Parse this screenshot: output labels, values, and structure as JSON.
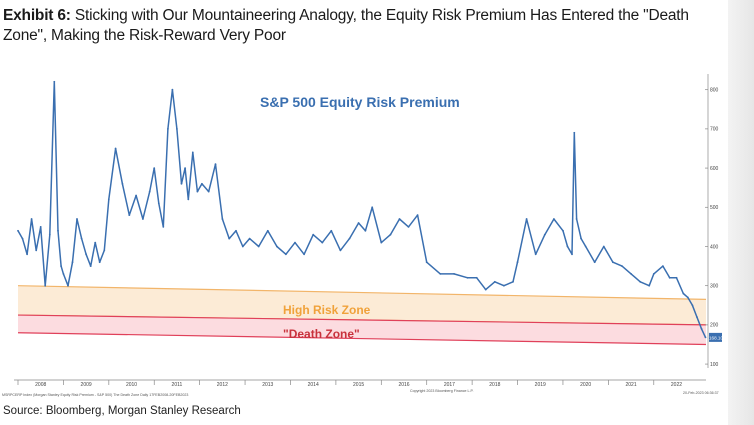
{
  "header": {
    "label": "Exhibit 6:",
    "title": " Sticking with Our Mountaineering Analogy, the Equity Risk Premium Has Entered the \"Death Zone\", Making the Risk-Reward Very Poor"
  },
  "source": "Source: Bloomberg, Morgan Stanley Research",
  "colors": {
    "line": "#3a6fb0",
    "title": "#3a6fb0",
    "high_zone_fill": "#fbe7cf",
    "high_zone_line": "#f2b56a",
    "high_zone_text": "#f0a23a",
    "death_zone_fill": "#fbd6da",
    "death_zone_line": "#e0405a",
    "death_zone_text": "#c8323c",
    "last_badge": "#3a6fb0"
  },
  "chart_data": {
    "type": "line",
    "title": "S&P 500 Equity Risk Premium",
    "xlabel": "",
    "ylabel": "",
    "x_range": [
      2008.0,
      2023.15
    ],
    "ylim": [
      90,
      840
    ],
    "y_ticks": [
      100,
      200,
      300,
      400,
      500,
      600,
      700,
      800
    ],
    "x_ticks": [
      "2008",
      "2009",
      "2010",
      "2011",
      "2012",
      "2013",
      "2014",
      "2015",
      "2016",
      "2017",
      "2018",
      "2019",
      "2020",
      "2021",
      "2022"
    ],
    "last_value_label": "168.10",
    "footnotes": {
      "left": "MSRPCERP Index (Morgan Stanley Equity Risk Premium - S&P 500) The Death Zone Daily 17FEB2008-20FEB2023",
      "center": "Copyright 2023 Bloomberg Finance L.P.",
      "right": "20-Feb-2023 06:36:37"
    },
    "zones": [
      {
        "name": "High Risk Zone",
        "upper_start": 300,
        "upper_end": 265,
        "lower_start": 225,
        "lower_end": 200
      },
      {
        "name": "\"Death Zone\"",
        "upper_start": 225,
        "upper_end": 200,
        "lower_start": 180,
        "lower_end": 150
      }
    ],
    "series": [
      {
        "name": "S&P 500 Equity Risk Premium",
        "x": [
          2008.0,
          2008.1,
          2008.2,
          2008.3,
          2008.4,
          2008.5,
          2008.6,
          2008.7,
          2008.8,
          2008.88,
          2008.95,
          2009.0,
          2009.1,
          2009.2,
          2009.3,
          2009.4,
          2009.5,
          2009.6,
          2009.7,
          2009.8,
          2009.9,
          2010.0,
          2010.15,
          2010.3,
          2010.45,
          2010.6,
          2010.75,
          2010.9,
          2011.0,
          2011.1,
          2011.2,
          2011.3,
          2011.4,
          2011.5,
          2011.6,
          2011.68,
          2011.75,
          2011.85,
          2011.95,
          2012.05,
          2012.2,
          2012.35,
          2012.5,
          2012.65,
          2012.8,
          2012.95,
          2013.1,
          2013.3,
          2013.5,
          2013.7,
          2013.9,
          2014.1,
          2014.3,
          2014.5,
          2014.7,
          2014.9,
          2015.1,
          2015.3,
          2015.5,
          2015.65,
          2015.8,
          2016.0,
          2016.2,
          2016.4,
          2016.6,
          2016.8,
          2017.0,
          2017.3,
          2017.6,
          2017.9,
          2018.1,
          2018.3,
          2018.5,
          2018.7,
          2018.9,
          2019.0,
          2019.2,
          2019.4,
          2019.6,
          2019.8,
          2020.0,
          2020.1,
          2020.2,
          2020.25,
          2020.3,
          2020.4,
          2020.5,
          2020.7,
          2020.9,
          2021.1,
          2021.3,
          2021.5,
          2021.7,
          2021.9,
          2022.0,
          2022.2,
          2022.35,
          2022.5,
          2022.65,
          2022.75,
          2022.85,
          2022.95,
          2023.05,
          2023.14
        ],
        "values": [
          440,
          420,
          380,
          470,
          390,
          450,
          300,
          430,
          820,
          440,
          350,
          330,
          300,
          360,
          470,
          420,
          380,
          350,
          410,
          360,
          390,
          520,
          650,
          560,
          480,
          530,
          470,
          540,
          600,
          510,
          450,
          700,
          800,
          700,
          560,
          600,
          520,
          640,
          540,
          560,
          540,
          610,
          470,
          420,
          440,
          400,
          420,
          400,
          440,
          400,
          380,
          410,
          380,
          430,
          410,
          440,
          390,
          420,
          460,
          440,
          500,
          410,
          430,
          470,
          450,
          480,
          360,
          330,
          330,
          320,
          320,
          290,
          310,
          300,
          310,
          360,
          470,
          380,
          430,
          470,
          440,
          400,
          380,
          690,
          470,
          420,
          400,
          360,
          400,
          360,
          350,
          330,
          310,
          300,
          330,
          350,
          320,
          320,
          280,
          270,
          250,
          220,
          190,
          168.1
        ]
      }
    ]
  }
}
